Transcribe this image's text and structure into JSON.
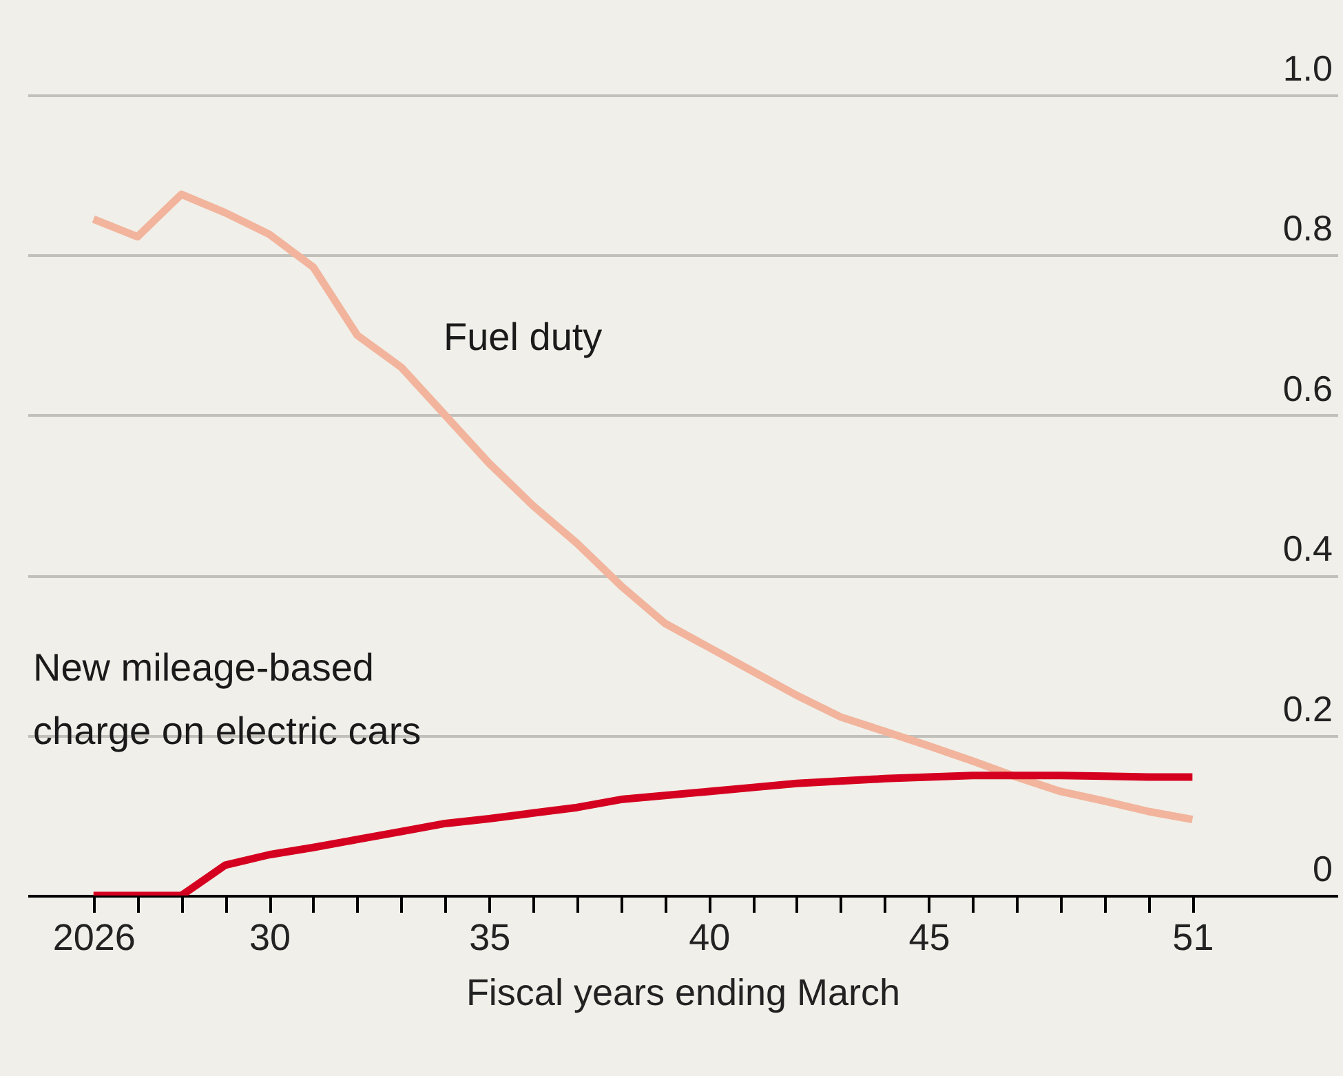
{
  "chart_data": {
    "type": "line",
    "xlabel": "Fiscal years ending March",
    "x": [
      2026,
      2027,
      2028,
      2029,
      2030,
      2031,
      2032,
      2033,
      2034,
      2035,
      2036,
      2037,
      2038,
      2039,
      2040,
      2041,
      2042,
      2043,
      2044,
      2045,
      2046,
      2047,
      2048,
      2049,
      2050,
      2051
    ],
    "series": [
      {
        "name": "Fuel duty",
        "color": "#f2b49c",
        "values": [
          0.845,
          0.823,
          0.876,
          0.853,
          0.826,
          0.785,
          0.7,
          0.66,
          0.6,
          0.54,
          0.487,
          0.44,
          0.387,
          0.34,
          0.31,
          0.28,
          0.25,
          0.223,
          0.205,
          0.187,
          0.168,
          0.148,
          0.13,
          0.118,
          0.105,
          0.095
        ]
      },
      {
        "name": "New mileage-based\ncharge on electric cars",
        "color": "#d5001f",
        "values": [
          0,
          0,
          0,
          0.038,
          0.051,
          0.06,
          0.07,
          0.08,
          0.09,
          0.096,
          0.103,
          0.11,
          0.12,
          0.125,
          0.13,
          0.135,
          0.14,
          0.143,
          0.146,
          0.148,
          0.15,
          0.15,
          0.15,
          0.149,
          0.148,
          0.148
        ]
      }
    ],
    "xlim": [
      2024.5,
      2054.3
    ],
    "xticks": [
      2026,
      {
        "value": 2027,
        "label": null
      },
      {
        "value": 2028,
        "label": null
      },
      {
        "value": 2029,
        "label": null
      },
      {
        "value": 2030,
        "label": "30"
      },
      {
        "value": 2031,
        "label": null
      },
      {
        "value": 2032,
        "label": null
      },
      {
        "value": 2033,
        "label": null
      },
      {
        "value": 2034,
        "label": null
      },
      {
        "value": 2035,
        "label": "35"
      },
      {
        "value": 2036,
        "label": null
      },
      {
        "value": 2037,
        "label": null
      },
      {
        "value": 2038,
        "label": null
      },
      {
        "value": 2039,
        "label": null
      },
      {
        "value": 2040,
        "label": "40"
      },
      {
        "value": 2041,
        "label": null
      },
      {
        "value": 2042,
        "label": null
      },
      {
        "value": 2043,
        "label": null
      },
      {
        "value": 2044,
        "label": null
      },
      {
        "value": 2045,
        "label": "45"
      },
      {
        "value": 2046,
        "label": null
      },
      {
        "value": 2047,
        "label": null
      },
      {
        "value": 2048,
        "label": null
      },
      {
        "value": 2049,
        "label": null
      },
      {
        "value": 2050,
        "label": null
      },
      {
        "value": 2051,
        "label": "51"
      }
    ],
    "ylim": [
      0,
      1.0
    ],
    "yticks": [
      0,
      0.2,
      0.4,
      0.6,
      0.8,
      {
        "value": 1.0,
        "label": "1.0"
      }
    ],
    "grid": "y",
    "line_style": "solid",
    "legend": false
  }
}
